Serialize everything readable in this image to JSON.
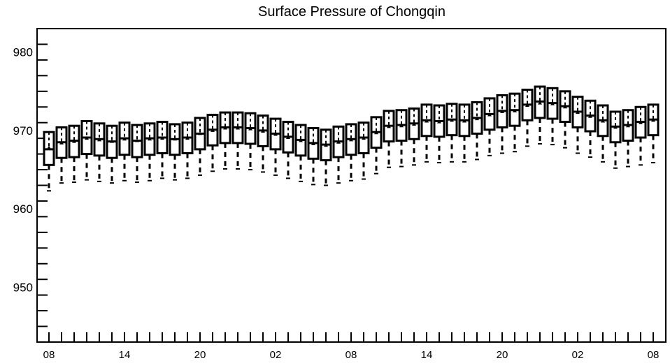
{
  "chart_data": {
    "type": "box",
    "title": "Surface Pressure of Chongqin",
    "xlabel": "",
    "ylabel": "",
    "ylim": [
      943,
      983
    ],
    "yticks": [
      950,
      960,
      970,
      980
    ],
    "x_tick_labels": [
      "08",
      "14",
      "20",
      "02",
      "08",
      "14",
      "20",
      "02",
      "08"
    ],
    "x_tick_positions": [
      0,
      6,
      12,
      18,
      24,
      30,
      36,
      42,
      48
    ],
    "boxes": [
      {
        "x": 0,
        "min": 962.3,
        "q1": 965.6,
        "median": 967.6,
        "q3": 969.8,
        "max": 969.8,
        "mean": 967.8
      },
      {
        "x": 1,
        "min": 963.3,
        "q1": 966.5,
        "median": 968.5,
        "q3": 970.4,
        "max": 970.4,
        "mean": 968.4
      },
      {
        "x": 2,
        "min": 963.4,
        "q1": 966.6,
        "median": 968.7,
        "q3": 970.6,
        "max": 970.6,
        "mean": 968.6
      },
      {
        "x": 3,
        "min": 963.7,
        "q1": 967.0,
        "median": 969.1,
        "q3": 971.2,
        "max": 971.2,
        "mean": 969.0
      },
      {
        "x": 4,
        "min": 963.5,
        "q1": 966.8,
        "median": 968.9,
        "q3": 970.9,
        "max": 970.9,
        "mean": 968.8
      },
      {
        "x": 5,
        "min": 963.3,
        "q1": 966.5,
        "median": 968.6,
        "q3": 970.6,
        "max": 970.6,
        "mean": 968.6
      },
      {
        "x": 6,
        "min": 963.6,
        "q1": 966.9,
        "median": 969.0,
        "q3": 971.0,
        "max": 971.0,
        "mean": 968.9
      },
      {
        "x": 7,
        "min": 963.4,
        "q1": 966.6,
        "median": 968.7,
        "q3": 970.7,
        "max": 970.7,
        "mean": 968.7
      },
      {
        "x": 8,
        "min": 963.6,
        "q1": 966.9,
        "median": 969.0,
        "q3": 970.9,
        "max": 970.9,
        "mean": 968.9
      },
      {
        "x": 9,
        "min": 963.9,
        "q1": 967.1,
        "median": 969.1,
        "q3": 971.1,
        "max": 971.1,
        "mean": 969.0
      },
      {
        "x": 10,
        "min": 963.7,
        "q1": 966.9,
        "median": 968.9,
        "q3": 970.8,
        "max": 970.8,
        "mean": 968.9
      },
      {
        "x": 11,
        "min": 963.9,
        "q1": 967.1,
        "median": 969.1,
        "q3": 971.0,
        "max": 971.0,
        "mean": 969.0
      },
      {
        "x": 12,
        "min": 964.3,
        "q1": 967.6,
        "median": 969.6,
        "q3": 971.6,
        "max": 971.6,
        "mean": 969.6
      },
      {
        "x": 13,
        "min": 964.8,
        "q1": 968.1,
        "median": 970.1,
        "q3": 972.0,
        "max": 972.0,
        "mean": 970.0
      },
      {
        "x": 14,
        "min": 965.1,
        "q1": 968.4,
        "median": 970.4,
        "q3": 972.3,
        "max": 972.3,
        "mean": 970.3
      },
      {
        "x": 15,
        "min": 965.1,
        "q1": 968.4,
        "median": 970.4,
        "q3": 972.3,
        "max": 972.3,
        "mean": 970.3
      },
      {
        "x": 16,
        "min": 965.0,
        "q1": 968.3,
        "median": 970.3,
        "q3": 972.2,
        "max": 972.2,
        "mean": 970.2
      },
      {
        "x": 17,
        "min": 964.7,
        "q1": 968.0,
        "median": 970.0,
        "q3": 971.9,
        "max": 971.9,
        "mean": 969.9
      },
      {
        "x": 18,
        "min": 964.3,
        "q1": 967.6,
        "median": 969.6,
        "q3": 971.5,
        "max": 971.5,
        "mean": 969.5
      },
      {
        "x": 19,
        "min": 963.9,
        "q1": 967.2,
        "median": 969.2,
        "q3": 971.1,
        "max": 971.1,
        "mean": 969.1
      },
      {
        "x": 20,
        "min": 963.5,
        "q1": 966.8,
        "median": 968.8,
        "q3": 970.7,
        "max": 970.7,
        "mean": 968.7
      },
      {
        "x": 21,
        "min": 963.1,
        "q1": 966.4,
        "median": 968.4,
        "q3": 970.3,
        "max": 970.3,
        "mean": 968.3
      },
      {
        "x": 22,
        "min": 963.0,
        "q1": 966.2,
        "median": 968.2,
        "q3": 970.1,
        "max": 970.1,
        "mean": 968.1
      },
      {
        "x": 23,
        "min": 963.3,
        "q1": 966.6,
        "median": 968.6,
        "q3": 970.5,
        "max": 970.5,
        "mean": 968.5
      },
      {
        "x": 24,
        "min": 963.6,
        "q1": 966.9,
        "median": 968.9,
        "q3": 970.8,
        "max": 970.8,
        "mean": 968.8
      },
      {
        "x": 25,
        "min": 963.8,
        "q1": 967.1,
        "median": 969.1,
        "q3": 971.0,
        "max": 971.0,
        "mean": 969.0
      },
      {
        "x": 26,
        "min": 964.5,
        "q1": 967.8,
        "median": 969.8,
        "q3": 971.7,
        "max": 971.7,
        "mean": 969.7
      },
      {
        "x": 27,
        "min": 965.3,
        "q1": 968.6,
        "median": 970.6,
        "q3": 972.5,
        "max": 972.5,
        "mean": 970.5
      },
      {
        "x": 28,
        "min": 965.4,
        "q1": 968.7,
        "median": 970.7,
        "q3": 972.6,
        "max": 972.6,
        "mean": 970.6
      },
      {
        "x": 29,
        "min": 965.6,
        "q1": 968.9,
        "median": 970.9,
        "q3": 972.8,
        "max": 972.8,
        "mean": 970.8
      },
      {
        "x": 30,
        "min": 966.0,
        "q1": 969.3,
        "median": 971.3,
        "q3": 973.3,
        "max": 973.3,
        "mean": 971.2
      },
      {
        "x": 31,
        "min": 965.9,
        "q1": 969.2,
        "median": 971.2,
        "q3": 973.2,
        "max": 973.2,
        "mean": 971.1
      },
      {
        "x": 32,
        "min": 966.0,
        "q1": 969.4,
        "median": 971.4,
        "q3": 973.4,
        "max": 973.4,
        "mean": 971.3
      },
      {
        "x": 33,
        "min": 966.0,
        "q1": 969.3,
        "median": 971.3,
        "q3": 973.3,
        "max": 973.3,
        "mean": 971.2
      },
      {
        "x": 34,
        "min": 966.3,
        "q1": 969.6,
        "median": 971.6,
        "q3": 973.6,
        "max": 973.6,
        "mean": 971.5
      },
      {
        "x": 35,
        "min": 966.8,
        "q1": 970.1,
        "median": 972.1,
        "q3": 974.1,
        "max": 974.1,
        "mean": 972.0
      },
      {
        "x": 36,
        "min": 967.1,
        "q1": 970.4,
        "median": 972.5,
        "q3": 974.5,
        "max": 974.5,
        "mean": 972.4
      },
      {
        "x": 37,
        "min": 967.3,
        "q1": 970.6,
        "median": 972.6,
        "q3": 974.7,
        "max": 974.7,
        "mean": 972.5
      },
      {
        "x": 38,
        "min": 968.0,
        "q1": 971.3,
        "median": 973.3,
        "q3": 975.2,
        "max": 975.2,
        "mean": 973.2
      },
      {
        "x": 39,
        "min": 968.3,
        "q1": 971.6,
        "median": 973.7,
        "q3": 975.6,
        "max": 975.6,
        "mean": 973.5
      },
      {
        "x": 40,
        "min": 968.2,
        "q1": 971.5,
        "median": 973.5,
        "q3": 975.4,
        "max": 975.4,
        "mean": 973.4
      },
      {
        "x": 41,
        "min": 967.8,
        "q1": 971.1,
        "median": 973.1,
        "q3": 975.0,
        "max": 975.0,
        "mean": 973.0
      },
      {
        "x": 42,
        "min": 967.1,
        "q1": 970.4,
        "median": 972.4,
        "q3": 974.3,
        "max": 974.3,
        "mean": 972.3
      },
      {
        "x": 43,
        "min": 966.6,
        "q1": 969.9,
        "median": 971.9,
        "q3": 973.8,
        "max": 973.8,
        "mean": 971.8
      },
      {
        "x": 44,
        "min": 966.0,
        "q1": 969.3,
        "median": 971.3,
        "q3": 973.2,
        "max": 973.2,
        "mean": 971.2
      },
      {
        "x": 45,
        "min": 965.2,
        "q1": 968.5,
        "median": 970.5,
        "q3": 972.4,
        "max": 972.4,
        "mean": 970.4
      },
      {
        "x": 46,
        "min": 965.4,
        "q1": 968.7,
        "median": 970.7,
        "q3": 972.6,
        "max": 972.6,
        "mean": 970.6
      },
      {
        "x": 47,
        "min": 965.6,
        "q1": 969.1,
        "median": 971.1,
        "q3": 973.0,
        "max": 973.0,
        "mean": 971.0
      },
      {
        "x": 48,
        "min": 965.9,
        "q1": 969.4,
        "median": 971.4,
        "q3": 973.3,
        "max": 973.3,
        "mean": 971.3
      }
    ],
    "grid": false,
    "legend": "none",
    "line_color": "#000000",
    "background_color": "#ffffff"
  }
}
